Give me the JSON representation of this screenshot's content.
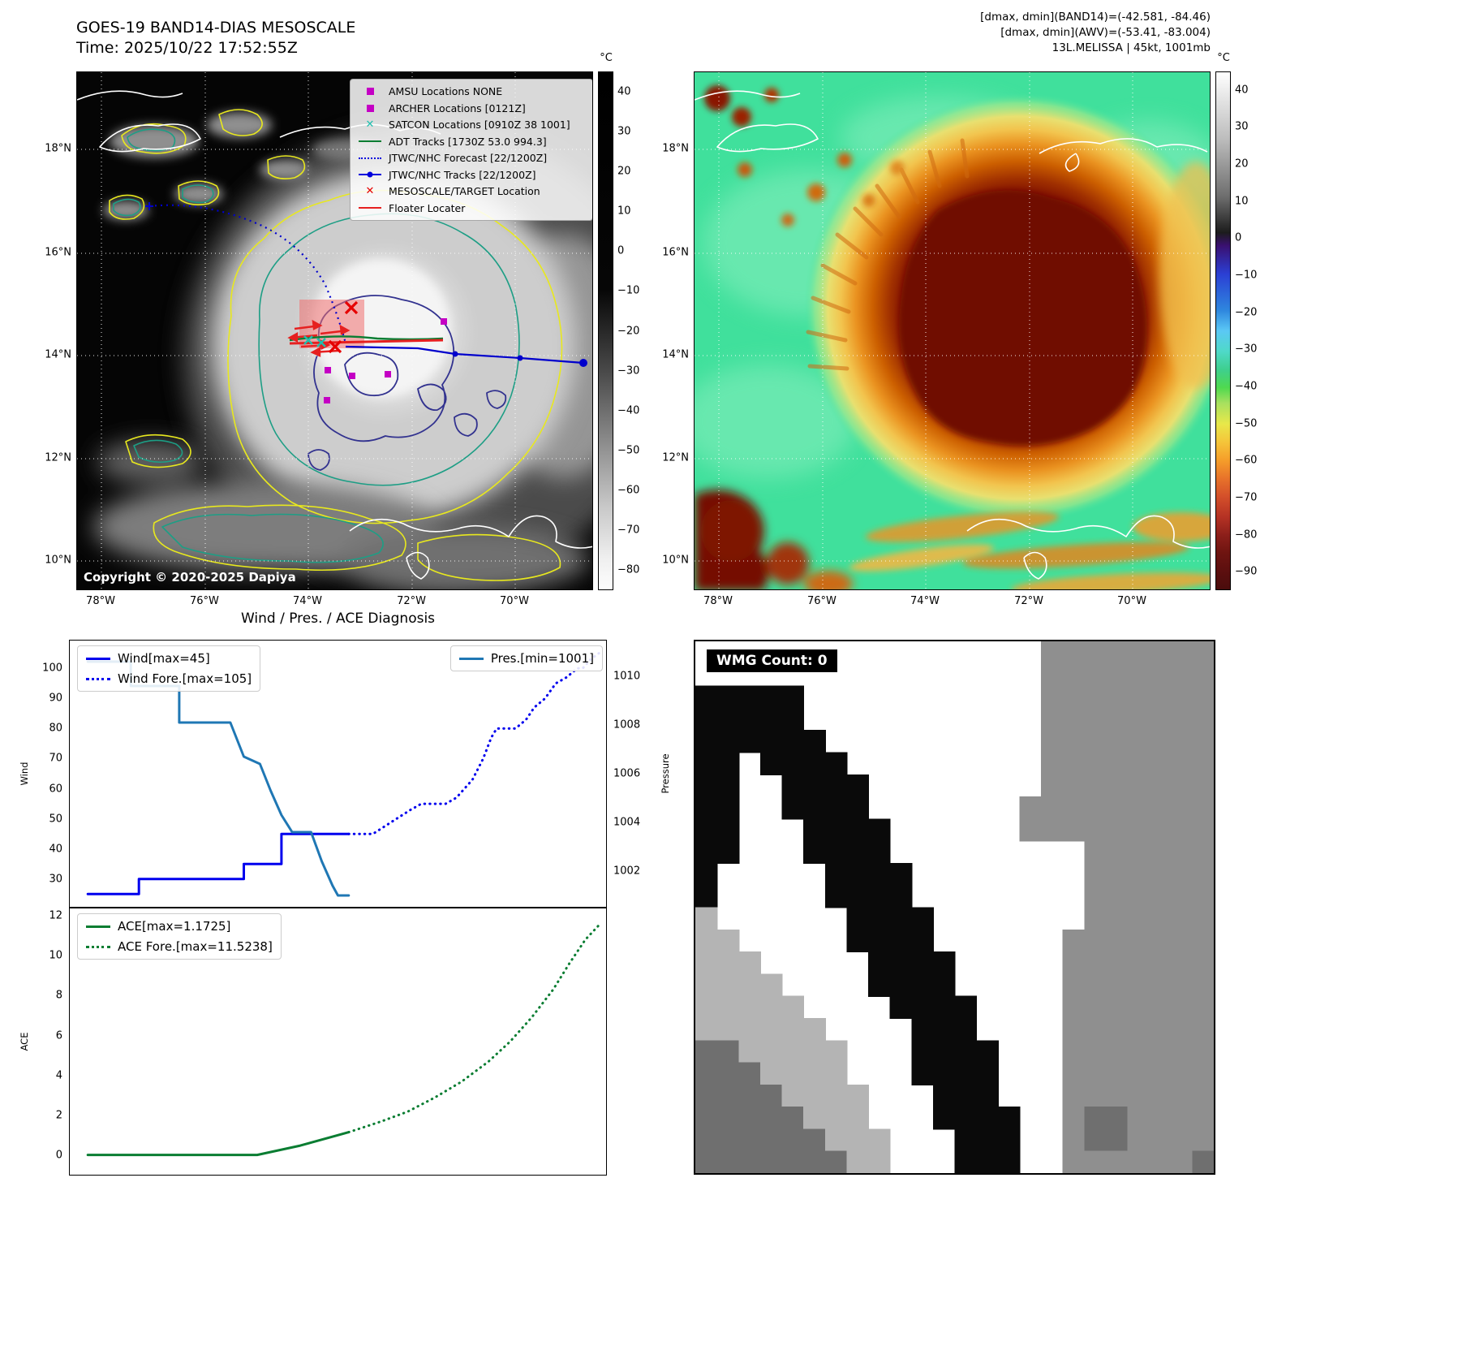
{
  "band14_panel": {
    "title": "GOES-19 BAND14-DIAS MESOSCALE",
    "subtitle": "Time: 2025/10/22 17:52:55Z",
    "copyright": "Copyright © 2020-2025 Dapiya",
    "colorbar": {
      "unit": "°C",
      "ticks": [
        "40",
        "30",
        "20",
        "10",
        "0",
        "−10",
        "−20",
        "−30",
        "−40",
        "−50",
        "−60",
        "−70",
        "−80"
      ]
    },
    "x_ticks": [
      "78°W",
      "76°W",
      "74°W",
      "72°W",
      "70°W"
    ],
    "y_ticks": [
      "18°N",
      "16°N",
      "14°N",
      "12°N",
      "10°N"
    ],
    "legend": [
      {
        "label": "AMSU Locations NONE",
        "marker": "square",
        "color": "#c400c4"
      },
      {
        "label": "ARCHER Locations [0121Z]",
        "marker": "square",
        "color": "#c400c4"
      },
      {
        "label": "SATCON Locations [0910Z 38 1001]",
        "marker": "x",
        "color": "#1fbfae"
      },
      {
        "label": "ADT Tracks [1730Z 53.0 994.3]",
        "marker": "line",
        "color": "#0a7d32"
      },
      {
        "label": "JTWC/NHC Forecast [22/1200Z]",
        "marker": "dotted",
        "color": "#0000dd"
      },
      {
        "label": "JTWC/NHC Tracks [22/1200Z]",
        "marker": "line-dot",
        "color": "#0000dd"
      },
      {
        "label": "MESOSCALE/TARGET Location",
        "marker": "x",
        "color": "#e60000"
      },
      {
        "label": "Floater Locater",
        "marker": "line",
        "color": "#e62020"
      }
    ]
  },
  "awv_panel": {
    "header_lines": [
      "[dmax, dmin](BAND14)=(-42.581, -84.46)",
      "[dmax, dmin](AWV)=(-53.41, -83.004)",
      "13L.MELISSA | 45kt, 1001mb"
    ],
    "colorbar": {
      "unit": "°C",
      "ticks": [
        "40",
        "30",
        "20",
        "10",
        "0",
        "−10",
        "−20",
        "−30",
        "−40",
        "−50",
        "−60",
        "−70",
        "−80",
        "−90"
      ]
    },
    "x_ticks": [
      "78°W",
      "76°W",
      "74°W",
      "72°W",
      "70°W"
    ],
    "y_ticks": [
      "18°N",
      "16°N",
      "14°N",
      "12°N",
      "10°N"
    ]
  },
  "wmg_panel": {
    "label": "WMG Count: 0",
    "palette": {
      "B": "#0a0a0a",
      "l": "#b4b4b4",
      "g": "#8f8f8f",
      "d": "#6f6f6f"
    },
    "grid": [
      "................gggggggg",
      "................gggggggg",
      "BBBBB...........gggggggg",
      "BBBBB...........gggggggg",
      "BBBBBB..........gggggggg",
      "BB.BBBB.........gggggggg",
      "BB..BBBB........gggggggg",
      "BB..BBBB.......ggggggggg",
      "BB...BBBB......ggggggggg",
      "BB...BBBB.........gggggg",
      "B.....BBBB........gggggg",
      "B.....BBBB........gggggg",
      "l......BBBB.......gggggg",
      "ll.....BBBB......ggggggg",
      "lll.....BBBB.....ggggggg",
      "llll....BBBB.....ggggggg",
      "lllll....BBBB....ggggggg",
      "llllll....BBB....ggggggg",
      "ddlllll...BBBB...ggggggg",
      "dddllll...BBBB...ggggggg",
      "ddddllll...BBB...ggggggg",
      "dddddlll...BBBB..gddgggg",
      "ddddddlll...BBB..gddgggg",
      "dddddddll...BBB..ggggggd"
    ]
  },
  "chart_data": [
    {
      "id": "wind_pres",
      "type": "line",
      "title": "Wind / Pres. / ACE Diagnosis",
      "ylabel_left": "Wind",
      "ylabel_right": "Pressure",
      "ylim_left": [
        20.5,
        109.5
      ],
      "ylim_right": [
        1000.5,
        1011.5
      ],
      "yticks_left": [
        30,
        40,
        50,
        60,
        70,
        80,
        90,
        100
      ],
      "yticks_right": [
        1002,
        1004,
        1006,
        1008,
        1010
      ],
      "series": [
        {
          "name": "Wind[max=45]",
          "axis": "left",
          "color": "#0000ee",
          "dash": "solid",
          "width": 3,
          "points": [
            [
              0.035,
              25
            ],
            [
              0.13,
              25
            ],
            [
              0.13,
              30
            ],
            [
              0.325,
              30
            ],
            [
              0.325,
              35
            ],
            [
              0.395,
              35
            ],
            [
              0.395,
              45
            ],
            [
              0.52,
              45
            ]
          ]
        },
        {
          "name": "Wind Fore.[max=105]",
          "axis": "left",
          "color": "#0000ee",
          "dash": "dotted",
          "width": 3,
          "points": [
            [
              0.52,
              45
            ],
            [
              0.565,
              45
            ],
            [
              0.6,
              49
            ],
            [
              0.635,
              53
            ],
            [
              0.655,
              55
            ],
            [
              0.7,
              55
            ],
            [
              0.72,
              57
            ],
            [
              0.75,
              63
            ],
            [
              0.77,
              70
            ],
            [
              0.785,
              77
            ],
            [
              0.795,
              80
            ],
            [
              0.83,
              80
            ],
            [
              0.85,
              83
            ],
            [
              0.865,
              87
            ],
            [
              0.885,
              90
            ],
            [
              0.905,
              95
            ],
            [
              0.925,
              97
            ],
            [
              0.945,
              100
            ],
            [
              0.955,
              100
            ],
            [
              0.97,
              103
            ],
            [
              0.985,
              105
            ]
          ]
        },
        {
          "name": "Pres.[min=1001]",
          "axis": "right",
          "color": "#1f77b4",
          "dash": "solid",
          "width": 3,
          "points": [
            [
              0.035,
              1010.6
            ],
            [
              0.115,
              1010.6
            ],
            [
              0.115,
              1009.6
            ],
            [
              0.205,
              1009.6
            ],
            [
              0.205,
              1008.1
            ],
            [
              0.3,
              1008.1
            ],
            [
              0.325,
              1006.7
            ],
            [
              0.355,
              1006.4
            ],
            [
              0.375,
              1005.3
            ],
            [
              0.395,
              1004.3
            ],
            [
              0.415,
              1003.6
            ],
            [
              0.45,
              1003.6
            ],
            [
              0.47,
              1002.4
            ],
            [
              0.49,
              1001.4
            ],
            [
              0.5,
              1001.0
            ],
            [
              0.52,
              1001.0
            ]
          ]
        }
      ],
      "legends": [
        {
          "position": "top-left",
          "entries": [
            {
              "label": "Wind[max=45]",
              "color": "#0000ee",
              "dash": "solid"
            },
            {
              "label": "Wind Fore.[max=105]",
              "color": "#0000ee",
              "dash": "dotted"
            }
          ]
        },
        {
          "position": "top-right",
          "entries": [
            {
              "label": "Pres.[min=1001]",
              "color": "#1f77b4",
              "dash": "solid"
            }
          ]
        }
      ]
    },
    {
      "id": "ace",
      "type": "line",
      "ylabel_left": "ACE",
      "ylim_left": [
        -1.0,
        12.4
      ],
      "yticks_left": [
        0,
        2,
        4,
        6,
        8,
        10,
        12
      ],
      "series": [
        {
          "name": "ACE[max=1.1725]",
          "axis": "left",
          "color": "#0a7d32",
          "dash": "solid",
          "width": 3,
          "points": [
            [
              0.035,
              0.03
            ],
            [
              0.35,
              0.03
            ],
            [
              0.43,
              0.5
            ],
            [
              0.52,
              1.17
            ]
          ]
        },
        {
          "name": "ACE Fore.[max=11.5238]",
          "axis": "left",
          "color": "#0a7d32",
          "dash": "dotted",
          "width": 3,
          "points": [
            [
              0.52,
              1.17
            ],
            [
              0.58,
              1.7
            ],
            [
              0.63,
              2.2
            ],
            [
              0.68,
              2.9
            ],
            [
              0.73,
              3.7
            ],
            [
              0.78,
              4.7
            ],
            [
              0.82,
              5.7
            ],
            [
              0.86,
              6.9
            ],
            [
              0.9,
              8.3
            ],
            [
              0.93,
              9.6
            ],
            [
              0.96,
              10.8
            ],
            [
              0.985,
              11.52
            ]
          ]
        }
      ],
      "legends": [
        {
          "position": "top-left",
          "entries": [
            {
              "label": "ACE[max=1.1725]",
              "color": "#0a7d32",
              "dash": "solid"
            },
            {
              "label": "ACE Fore.[max=11.5238]",
              "color": "#0a7d32",
              "dash": "dotted"
            }
          ]
        }
      ]
    }
  ]
}
